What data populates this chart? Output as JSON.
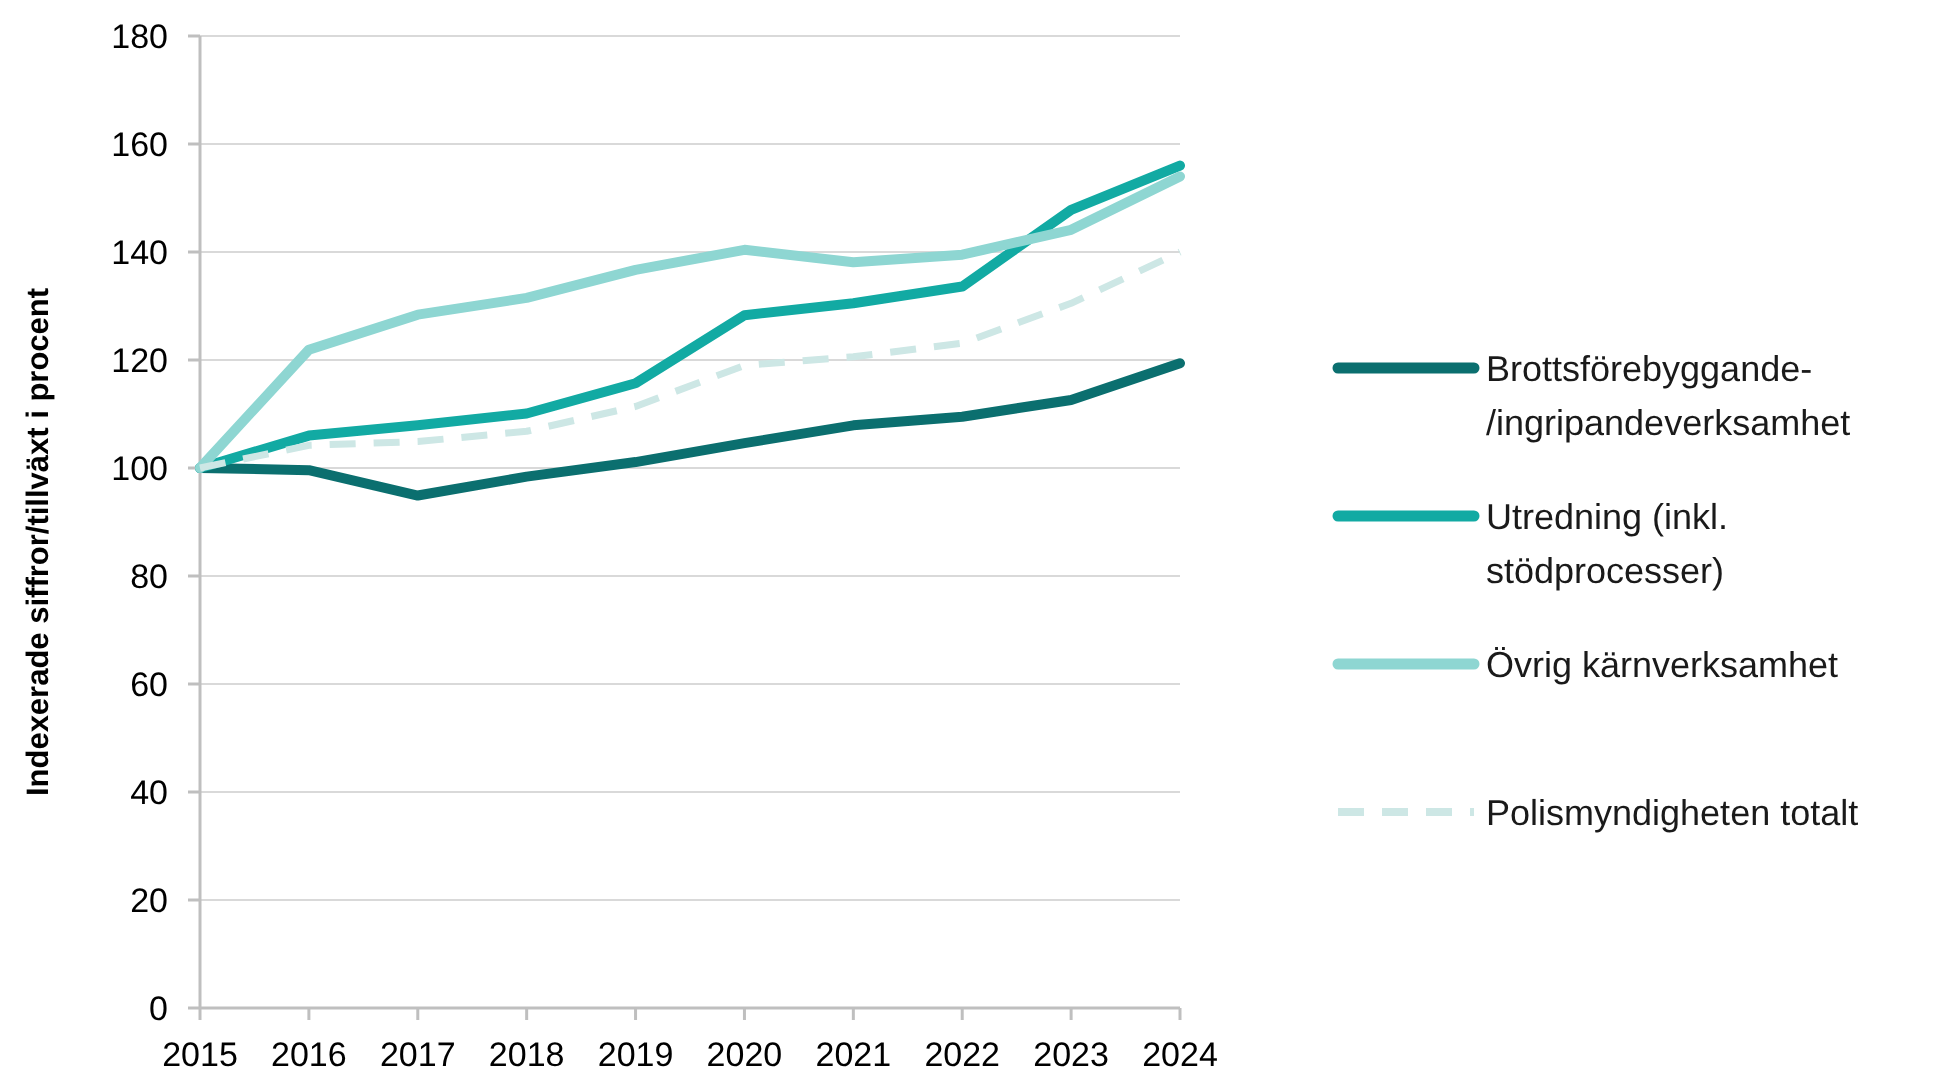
{
  "chart_data": {
    "type": "line",
    "ylabel": "Indexerade siffror/tillväxt i procent",
    "categories": [
      "2015",
      "2016",
      "2017",
      "2018",
      "2019",
      "2020",
      "2021",
      "2022",
      "2023",
      "2024"
    ],
    "series": [
      {
        "name": "Brottsförebyggande-/ingripandeverksamhet",
        "color": "#0b6f6f",
        "values": [
          100,
          99.6,
          94.9,
          98.4,
          101.1,
          104.6,
          107.9,
          109.5,
          112.6,
          119.4
        ]
      },
      {
        "name": "Utredning (inkl. stödprocesser)",
        "color": "#12aaa3",
        "values": [
          100,
          106,
          107.9,
          110.1,
          115.7,
          128.3,
          130.5,
          133.6,
          147.8,
          156
        ]
      },
      {
        "name": "Övrig kärnverksamhet",
        "color": "#8ed6d2",
        "values": [
          100,
          121.9,
          128.4,
          131.5,
          136.7,
          140.4,
          138.1,
          139.5,
          144.1,
          154
        ]
      },
      {
        "name": "Polismyndigheten totalt",
        "color": "#cde7e5",
        "line_style": "dashed",
        "values": [
          100,
          104.2,
          104.9,
          106.8,
          111.4,
          119,
          120.6,
          123.1,
          130.5,
          140
        ]
      }
    ],
    "ylim": [
      0,
      180
    ],
    "yticks": [
      0,
      20,
      40,
      60,
      80,
      100,
      120,
      140,
      160,
      180
    ],
    "grid": "y",
    "legend": "right"
  }
}
